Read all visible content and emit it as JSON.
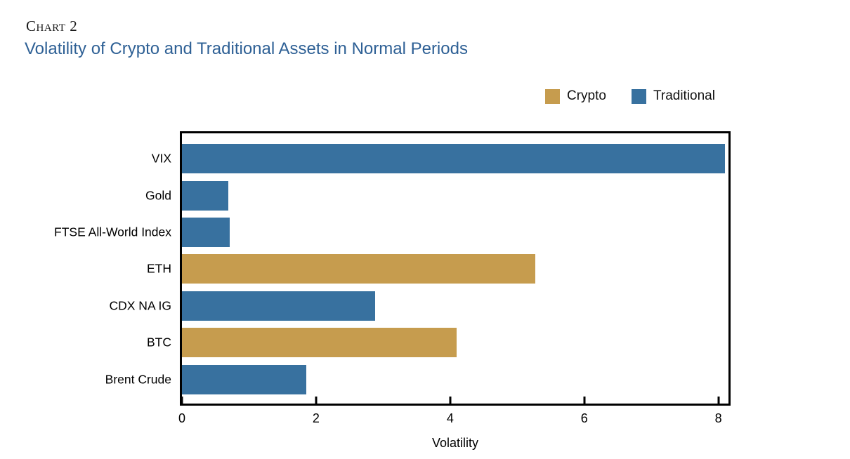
{
  "page": {
    "background": "#ffffff"
  },
  "header": {
    "kicker": "Chart 2",
    "title": "Volatility of Crypto and Traditional Assets in Normal Periods",
    "title_color": "#2E6095"
  },
  "chart_data": {
    "type": "bar",
    "orientation": "horizontal",
    "title": "Volatility of Crypto and Traditional Assets in Normal Periods",
    "xlabel": "Volatility",
    "ylabel": "",
    "xlim": [
      0,
      8.15
    ],
    "xticks": [
      0,
      2,
      4,
      6,
      8
    ],
    "grid": false,
    "legend_position": "top-right",
    "legend": [
      {
        "label": "Crypto",
        "color": "#C69C4E"
      },
      {
        "label": "Traditional",
        "color": "#38719F"
      }
    ],
    "bars": [
      {
        "label": "VIX",
        "value": 8.1,
        "group": "Traditional"
      },
      {
        "label": "Gold",
        "value": 0.69,
        "group": "Traditional"
      },
      {
        "label": "FTSE All-World Index",
        "value": 0.71,
        "group": "Traditional"
      },
      {
        "label": "ETH",
        "value": 5.27,
        "group": "Crypto"
      },
      {
        "label": "CDX NA IG",
        "value": 2.88,
        "group": "Traditional"
      },
      {
        "label": "BTC",
        "value": 4.1,
        "group": "Crypto"
      },
      {
        "label": "Brent Crude",
        "value": 1.85,
        "group": "Traditional"
      }
    ]
  }
}
